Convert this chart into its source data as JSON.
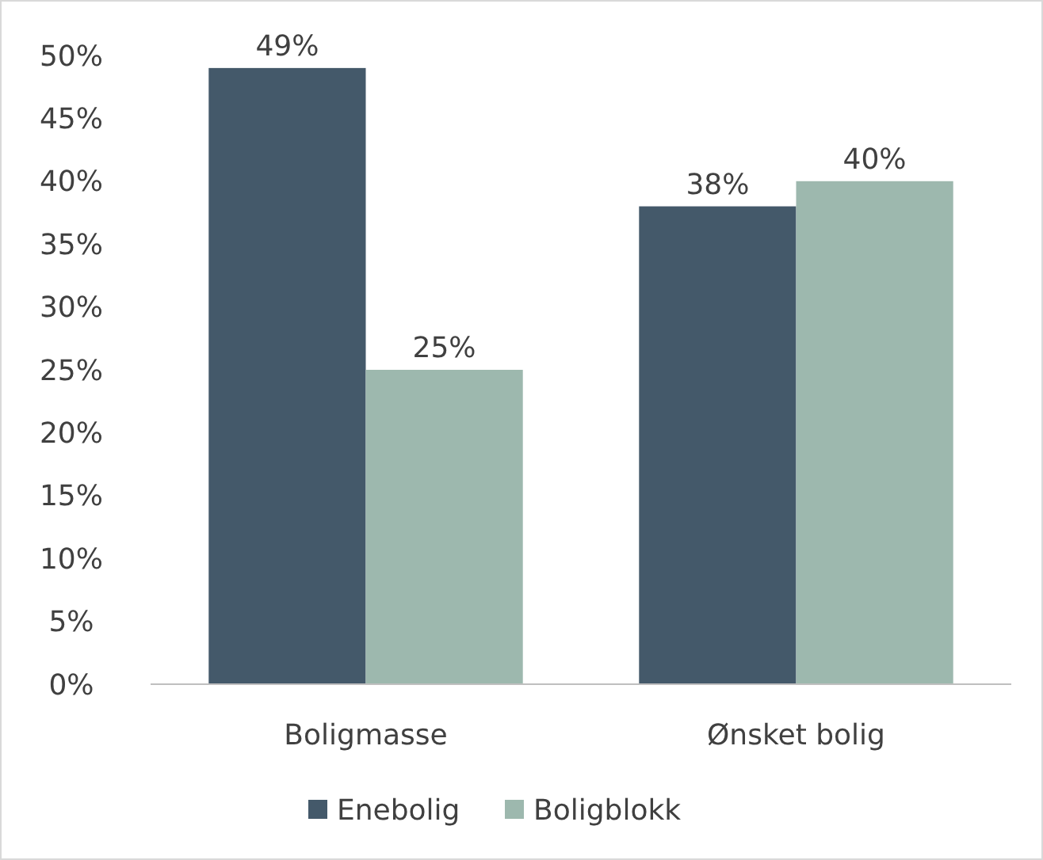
{
  "chart_data": {
    "type": "bar",
    "categories": [
      "Boligmasse",
      "Ønsket bolig"
    ],
    "series": [
      {
        "name": "Enebolig",
        "color": "#44596a",
        "values": [
          49,
          38
        ],
        "value_labels": [
          "49%",
          "38%"
        ]
      },
      {
        "name": "Boligblokk",
        "color": "#9db8ae",
        "values": [
          25,
          40
        ],
        "value_labels": [
          "25%",
          "40%"
        ]
      }
    ],
    "ylim": [
      0,
      50
    ],
    "yticks": [
      {
        "value": 0,
        "label": "0%"
      },
      {
        "value": 5,
        "label": "5%"
      },
      {
        "value": 10,
        "label": "10%"
      },
      {
        "value": 15,
        "label": "15%"
      },
      {
        "value": 20,
        "label": "20%"
      },
      {
        "value": 25,
        "label": "25%"
      },
      {
        "value": 30,
        "label": "30%"
      },
      {
        "value": 35,
        "label": "35%"
      },
      {
        "value": 40,
        "label": "40%"
      },
      {
        "value": 45,
        "label": "45%"
      },
      {
        "value": 50,
        "label": "50%"
      }
    ],
    "grid": false,
    "legend": "bottom"
  }
}
